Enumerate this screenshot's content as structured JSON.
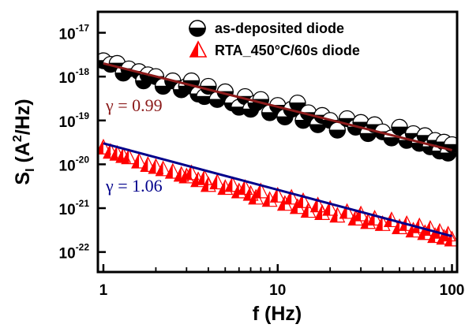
{
  "chart_data": {
    "type": "scatter",
    "xscale": "log",
    "yscale": "log",
    "xlim": [
      0.93,
      107
    ],
    "ylim": [
      3.5e-23,
      3e-17
    ],
    "xlabel": "f (Hz)",
    "ylabel": {
      "base": "S",
      "sub": "I",
      "unit_open": " (A",
      "sup": "2",
      "unit_close": "/Hz)"
    },
    "xticks": [
      {
        "value": 1,
        "label": "1"
      },
      {
        "value": 10,
        "label": "10"
      },
      {
        "value": 100,
        "label": "100"
      }
    ],
    "yticks": [
      {
        "value": 1e-22,
        "base": "10",
        "exp": "-22"
      },
      {
        "value": 1e-21,
        "base": "10",
        "exp": "-21"
      },
      {
        "value": 1e-20,
        "base": "10",
        "exp": "-20"
      },
      {
        "value": 1e-19,
        "base": "10",
        "exp": "-19"
      },
      {
        "value": 1e-18,
        "base": "10",
        "exp": "-18"
      },
      {
        "value": 1e-17,
        "base": "10",
        "exp": "-17"
      }
    ],
    "legend_position": "top-right",
    "series": [
      {
        "name": "as-deposited diode",
        "marker": "half-filled-circle",
        "color": "#000000",
        "points": [
          [
            1.0,
            2.3e-18
          ],
          [
            1.1,
            1.9e-18
          ],
          [
            1.2,
            2e-18
          ],
          [
            1.3,
            1.2e-18
          ],
          [
            1.4,
            1.5e-18
          ],
          [
            1.6,
            1.3e-18
          ],
          [
            1.7,
            8e-19
          ],
          [
            1.8,
            1.1e-18
          ],
          [
            2.0,
            1e-18
          ],
          [
            2.2,
            6e-19
          ],
          [
            2.5,
            8e-19
          ],
          [
            2.8,
            5e-19
          ],
          [
            3.0,
            6e-19
          ],
          [
            3.2,
            8e-19
          ],
          [
            3.5,
            4e-19
          ],
          [
            3.8,
            3.5e-19
          ],
          [
            4.0,
            6e-19
          ],
          [
            4.5,
            3e-19
          ],
          [
            5.0,
            4.5e-19
          ],
          [
            5.5,
            2.5e-19
          ],
          [
            6.0,
            2e-19
          ],
          [
            6.5,
            3.5e-19
          ],
          [
            7.0,
            1.8e-19
          ],
          [
            7.5,
            2.5e-19
          ],
          [
            8.0,
            3e-19
          ],
          [
            9.0,
            1.5e-19
          ],
          [
            10,
            2.2e-19
          ],
          [
            11,
            1.2e-19
          ],
          [
            12,
            1.8e-19
          ],
          [
            13,
            2.5e-19
          ],
          [
            14,
            1e-19
          ],
          [
            15,
            1.5e-19
          ],
          [
            17,
            8e-20
          ],
          [
            18,
            1.3e-19
          ],
          [
            20,
            1e-19
          ],
          [
            22,
            6e-20
          ],
          [
            25,
            1.1e-19
          ],
          [
            28,
            7e-20
          ],
          [
            30,
            9e-20
          ],
          [
            33,
            5e-20
          ],
          [
            36,
            8e-20
          ],
          [
            40,
            5.5e-20
          ],
          [
            45,
            4e-20
          ],
          [
            50,
            7e-20
          ],
          [
            55,
            3.5e-20
          ],
          [
            60,
            5e-20
          ],
          [
            65,
            3e-20
          ],
          [
            70,
            4.5e-20
          ],
          [
            75,
            2.5e-20
          ],
          [
            80,
            3.5e-20
          ],
          [
            85,
            2e-20
          ],
          [
            90,
            3.2e-20
          ],
          [
            95,
            1.8e-20
          ],
          [
            100,
            2.8e-20
          ]
        ]
      },
      {
        "name": "RTA_450°C/60s diode",
        "marker": "half-filled-triangle",
        "color": "#ff0000",
        "points": [
          [
            1.0,
            2.5e-20
          ],
          [
            1.1,
            2e-20
          ],
          [
            1.2,
            1.8e-20
          ],
          [
            1.3,
            1.6e-20
          ],
          [
            1.4,
            1.5e-20
          ],
          [
            1.6,
            1.2e-20
          ],
          [
            1.8,
            1e-20
          ],
          [
            2.0,
            9e-21
          ],
          [
            2.2,
            8e-21
          ],
          [
            2.5,
            7e-21
          ],
          [
            2.8,
            6e-21
          ],
          [
            3.0,
            5.5e-21
          ],
          [
            3.2,
            6.5e-21
          ],
          [
            3.5,
            4.5e-21
          ],
          [
            3.8,
            5e-21
          ],
          [
            4.0,
            3.5e-21
          ],
          [
            4.5,
            4e-21
          ],
          [
            5.0,
            3e-21
          ],
          [
            5.5,
            3.5e-21
          ],
          [
            6.0,
            2.5e-21
          ],
          [
            6.5,
            3e-21
          ],
          [
            7.0,
            2.2e-21
          ],
          [
            7.5,
            1.8e-21
          ],
          [
            8.0,
            2.5e-21
          ],
          [
            9.0,
            1.6e-21
          ],
          [
            10,
            2e-21
          ],
          [
            11,
            1.3e-21
          ],
          [
            12,
            1.8e-21
          ],
          [
            13,
            1.1e-21
          ],
          [
            14,
            1.5e-21
          ],
          [
            15,
            9e-22
          ],
          [
            17,
            1.2e-21
          ],
          [
            18,
            8e-22
          ],
          [
            20,
            1e-21
          ],
          [
            22,
            7e-22
          ],
          [
            25,
            8.5e-22
          ],
          [
            28,
            6e-22
          ],
          [
            30,
            7.5e-22
          ],
          [
            33,
            5e-22
          ],
          [
            36,
            6e-22
          ],
          [
            40,
            4.5e-22
          ],
          [
            45,
            5.5e-22
          ],
          [
            50,
            3.8e-22
          ],
          [
            55,
            4.5e-22
          ],
          [
            60,
            3.2e-22
          ],
          [
            65,
            4e-22
          ],
          [
            70,
            2.8e-22
          ],
          [
            75,
            3.5e-22
          ],
          [
            80,
            2.4e-22
          ],
          [
            85,
            3e-22
          ],
          [
            90,
            2.2e-22
          ],
          [
            95,
            2.6e-22
          ],
          [
            100,
            2e-22
          ]
        ]
      }
    ],
    "fits": [
      {
        "gamma_label": "γ = 0.99",
        "color": "#8b1a1a",
        "x": [
          1,
          100
        ],
        "y": [
          2e-18,
          2.1e-20
        ]
      },
      {
        "gamma_label": "γ = 1.06",
        "color": "#00008b",
        "x": [
          1,
          100
        ],
        "y": [
          3e-20,
          2.3e-22
        ]
      }
    ]
  }
}
